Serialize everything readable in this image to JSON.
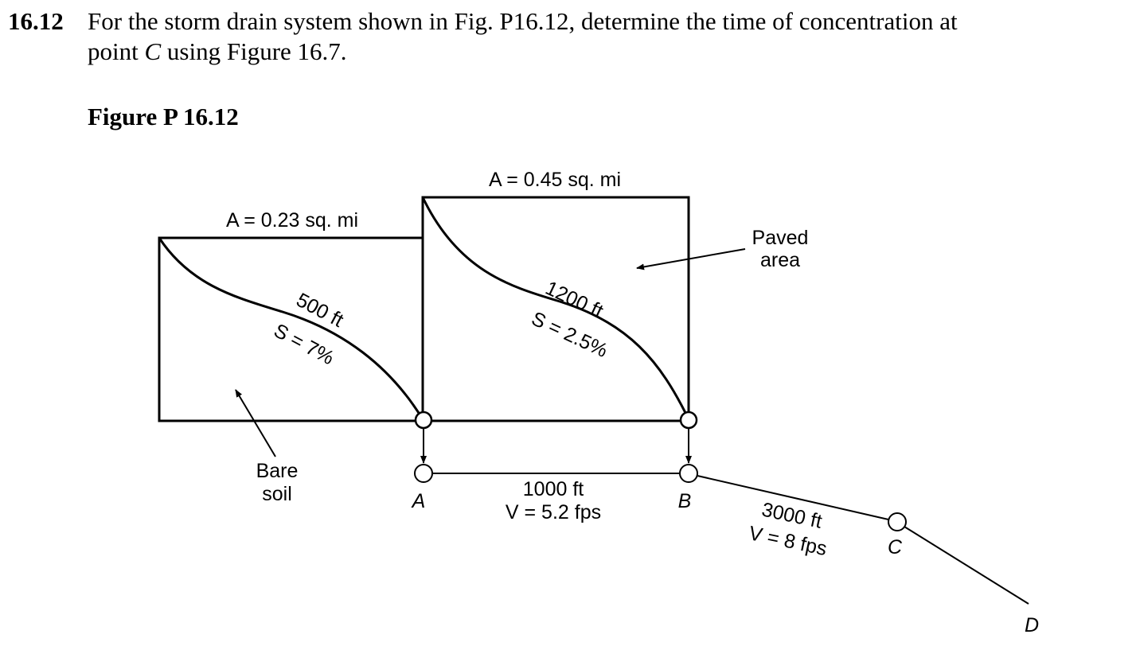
{
  "problem": {
    "number": "16.12",
    "text_line1": "For the storm drain system shown in Fig. P16.12, determine the time of concentration at",
    "text_line2_pre": "point ",
    "text_line2_point": "C",
    "text_line2_post": " using Figure 16.7."
  },
  "figure": {
    "title": "Figure P 16.12",
    "left_area_label": "A = 0.23 sq. mi",
    "right_area_label": "A = 0.45 sq. mi",
    "left_flow_length": "500 ft",
    "left_flow_slope": "S = 7%",
    "right_flow_length": "1200 ft",
    "right_flow_slope": "S = 2.5%",
    "bare_soil_line1": "Bare",
    "bare_soil_line2": "soil",
    "paved_line1": "Paved",
    "paved_line2": "area",
    "node_a": "A",
    "node_b": "B",
    "node_c": "C",
    "node_d": "D",
    "pipe_ab_length": "1000 ft",
    "pipe_ab_velocity": "V = 5.2 fps",
    "pipe_bc_length": "3000 ft",
    "pipe_bc_velocity": "V = 8 fps"
  }
}
